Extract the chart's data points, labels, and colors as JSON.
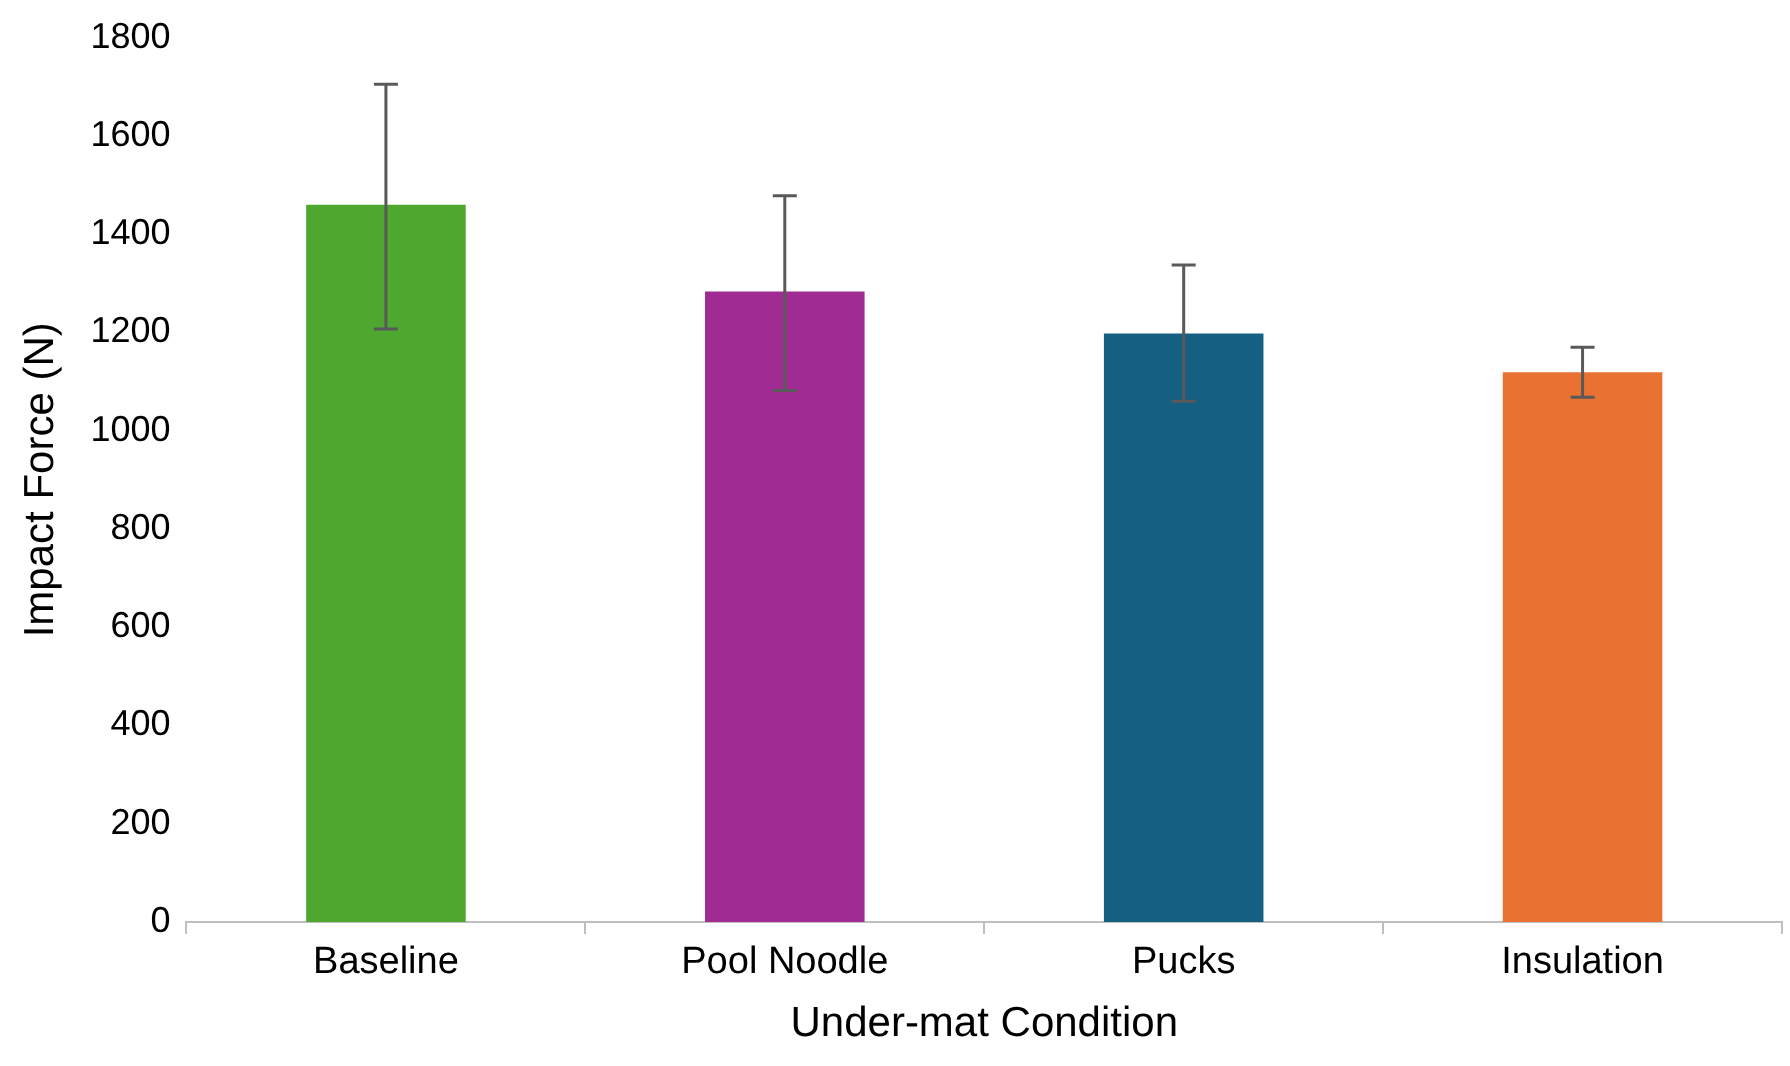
{
  "chart_data": {
    "type": "bar",
    "xlabel": "Under-mat Condition",
    "ylabel": "Impact Force (N)",
    "categories": [
      "Baseline",
      "Pool Noodle",
      "Pucks",
      "Insulation"
    ],
    "values": [
      1460,
      1283,
      1198,
      1119
    ],
    "colors": [
      "#4ea72e",
      "#a02b93",
      "#156082",
      "#e97132"
    ],
    "errors": [
      [
        1207,
        1705
      ],
      [
        1082,
        1478
      ],
      [
        1060,
        1337
      ],
      [
        1068,
        1170
      ]
    ],
    "ylim": [
      0,
      1800
    ],
    "yticks": [
      0,
      200,
      400,
      600,
      800,
      1000,
      1200,
      1400,
      1600,
      1800
    ],
    "grid": false,
    "legend": false
  }
}
